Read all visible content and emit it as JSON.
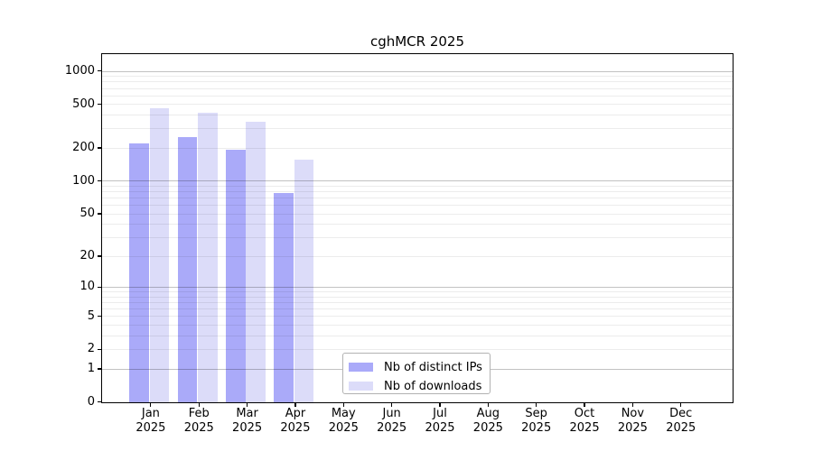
{
  "figure": {
    "title": "cghMCR 2025"
  },
  "chart_data": {
    "type": "bar",
    "title": "cghMCR 2025",
    "categories": [
      "Jan 2025",
      "Feb 2025",
      "Mar 2025",
      "Apr 2025",
      "May 2025",
      "Jun 2025",
      "Jul 2025",
      "Aug 2025",
      "Sep 2025",
      "Oct 2025",
      "Nov 2025",
      "Dec 2025"
    ],
    "series": [
      {
        "name": "Nb of distinct IPs",
        "color": "#aaaaf9",
        "values": [
          222,
          252,
          194,
          78,
          0,
          0,
          0,
          0,
          0,
          0,
          0,
          0
        ]
      },
      {
        "name": "Nb of downloads",
        "color": "#dcdcf9",
        "values": [
          461,
          417,
          349,
          157,
          0,
          0,
          0,
          0,
          0,
          0,
          0,
          0
        ]
      }
    ],
    "yscale": "log1p",
    "yticks": [
      0,
      1,
      2,
      5,
      10,
      20,
      50,
      100,
      200,
      500,
      1000
    ],
    "ylim": [
      0,
      1420
    ],
    "xlabel": "",
    "ylabel": "",
    "grid": "horizontal, minor at 2-9/20-90/200-900, major at 1/10/100/1000",
    "legend_position": "lower center inside axes"
  },
  "colors": {
    "spine": "#000000",
    "grid_minor": "rgba(0,0,0,0.075)",
    "grid_major": "rgba(0,0,0,0.24)",
    "background": "#ffffff"
  }
}
